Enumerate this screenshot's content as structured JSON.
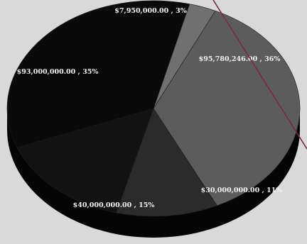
{
  "chart_data": {
    "type": "pie",
    "title": "",
    "slices": [
      {
        "label": "$95,780,246.00 , 36%",
        "value": 95780246,
        "percent": 36,
        "color": "#5c5c5c"
      },
      {
        "label": "$30,000,000.00 , 11%",
        "value": 30000000,
        "percent": 11,
        "color": "#2b2b2b"
      },
      {
        "label": "$40,000,000.00 , 15%",
        "value": 40000000,
        "percent": 15,
        "color": "#121212"
      },
      {
        "label": "$93,000,000.00 , 35%",
        "value": 93000000,
        "percent": 35,
        "color": "#0a0a0a"
      },
      {
        "label": "$7,950,000.00 , 3%",
        "value": 7950000,
        "percent": 3,
        "color": "#707070"
      }
    ],
    "legend": "none",
    "style": "3d-tilted"
  },
  "colors": {
    "background": "#d9d9d9",
    "pie_side": "#050505",
    "label_text": "#f4f4f4",
    "overlay_line": "#7a2a3c"
  }
}
